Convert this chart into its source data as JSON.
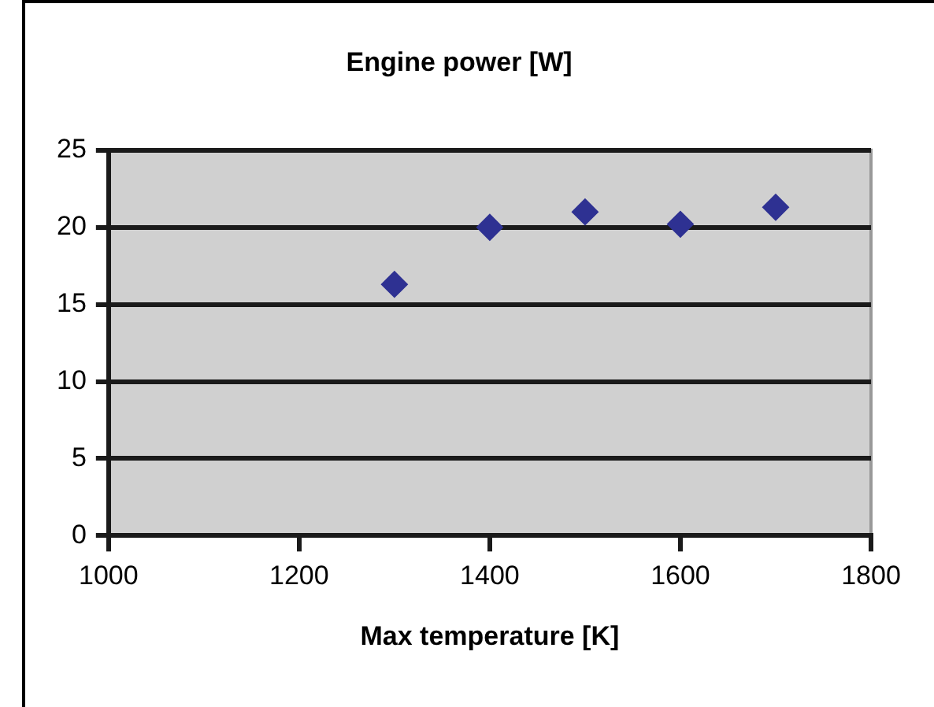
{
  "chart_data": {
    "type": "scatter",
    "title": "Engine power [W]",
    "xlabel": "Max temperature [K]",
    "x": [
      1300,
      1400,
      1500,
      1600,
      1700
    ],
    "series": [
      {
        "color": "#2e3192",
        "values": [
          16.3,
          20,
          21,
          20.2,
          21.3
        ]
      }
    ],
    "xlim": [
      1000,
      1800
    ],
    "xticks": [
      1000,
      1200,
      1400,
      1600,
      1800
    ],
    "ylim": [
      0,
      25
    ],
    "yticks": [
      0,
      5,
      10,
      15,
      20,
      25
    ],
    "grid": "y",
    "legend": false,
    "marker": "diamond"
  }
}
